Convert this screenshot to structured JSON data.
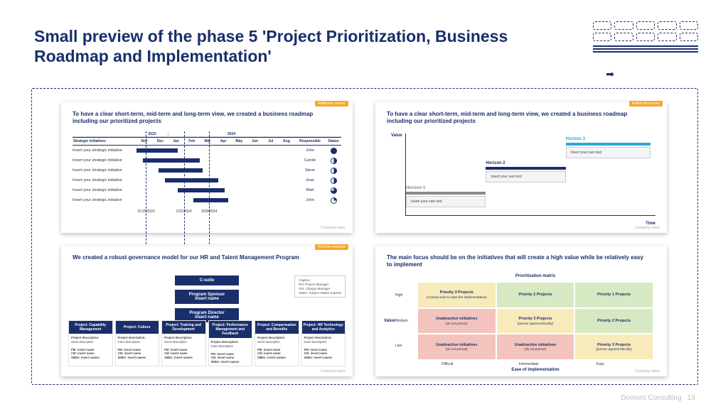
{
  "slide": {
    "title": "Small preview of the phase 5 'Project Prioritization, Business Roadmap and Implementation'",
    "footer_company": "Domont Consulting",
    "footer_page": "13",
    "colors": {
      "navy": "#1a2e6b",
      "orange": "#f5a623",
      "cyan": "#2aa8e0"
    }
  },
  "tags": {
    "additional": "Additional version",
    "reallife": "Real-life example"
  },
  "common": {
    "company_footnote": "Company name"
  },
  "gantt": {
    "title": "To have a clear short-term, mid-term and long-term view, we created a business roadmap including our prioritized projects",
    "col_initiatives": "Strategic initiatives",
    "year1": "2023",
    "year2": "2024",
    "months": [
      "Nov",
      "Dec",
      "Jan",
      "Feb",
      "Mar",
      "Apr",
      "May",
      "Jun",
      "Jul",
      "Aug"
    ],
    "col_responsible": "Responsible",
    "col_status": "Status",
    "rows": [
      {
        "label": "Insert your strategic initiative",
        "start_pct": 0,
        "width_pct": 26,
        "name": "John",
        "status_pct": 100
      },
      {
        "label": "Insert your strategic initiative",
        "start_pct": 4,
        "width_pct": 36,
        "name": "Carole",
        "status_pct": 50
      },
      {
        "label": "Insert your strategic initiative",
        "start_pct": 14,
        "width_pct": 28,
        "name": "Steve",
        "status_pct": 50
      },
      {
        "label": "Insert your strategic initiative",
        "start_pct": 18,
        "width_pct": 34,
        "name": "Jean",
        "status_pct": 50
      },
      {
        "label": "Insert your strategic initiative",
        "start_pct": 26,
        "width_pct": 30,
        "name": "Matt",
        "status_pct": 75
      },
      {
        "label": "Insert your strategic initiative",
        "start_pct": 36,
        "width_pct": 22,
        "name": "John",
        "status_pct": 25
      }
    ],
    "milestones": [
      {
        "pos_pct": 6,
        "label": "11/15/2023"
      },
      {
        "pos_pct": 30,
        "label": "1/22/2024"
      },
      {
        "pos_pct": 46,
        "label": "3/18/2024"
      }
    ]
  },
  "horizons": {
    "title": "To have a clear short-term, mid-term and long-term view, we created a business roadmap including our prioritized projects",
    "ylabel": "Value",
    "xlabel": "Time",
    "steps": [
      {
        "name": "Horizon 1",
        "text": "Insert your own text",
        "color": "#8a8a8a",
        "left_pct": 0,
        "width_pct": 32,
        "top_pct": 64
      },
      {
        "name": "Horizon 2",
        "text": "Insert your own text",
        "color": "#1a2e6b",
        "left_pct": 32,
        "width_pct": 32,
        "top_pct": 34
      },
      {
        "name": "Horizon 3",
        "text": "Insert your own text",
        "color": "#2aa8e0",
        "left_pct": 64,
        "width_pct": 34,
        "top_pct": 4
      }
    ]
  },
  "governance": {
    "title": "We created a robust governance model for our HR and Talent Management Program",
    "top_boxes": [
      "C-suite",
      "Program Sponsor\nInsert name",
      "Program Director\nInsert name"
    ],
    "legend_lines": [
      "Caption:",
      "PM: Project Manager",
      "CM: Change Manager",
      "SMEs: Subject Matter Experts"
    ],
    "columns": [
      "Project: Capability Management",
      "Project: Culture",
      "Project: Training and Development",
      "Project: Performance Management and Feedback",
      "Project: Compensation and Benefits",
      "Project: HR Technology and Analytics"
    ],
    "col_body_label1": "Project description:",
    "col_body_text": "insert description",
    "col_body_pm": "PM: insert name",
    "col_body_cm": "CM: insert name",
    "col_body_smes": "SMEs: insert names"
  },
  "matrix": {
    "title": "The main focus should be on the initiatives that will create a high value while be relatively easy to implement",
    "subtitle": "Prioritization matrix",
    "ylabel": "Value",
    "xlabel": "Ease of implementation",
    "yticks": [
      "High",
      "Medium",
      "Low"
    ],
    "xticks": [
      "Difficult",
      "Intermediate",
      "Easy"
    ],
    "colors": {
      "green": "#d7e9c3",
      "yellow": "#f7eabb",
      "red": "#f3c4bd"
    },
    "cells": [
      {
        "color": "yellow",
        "head": "Priority 3 Projects",
        "sub": "(Actively work to ease the implementation)"
      },
      {
        "color": "green",
        "head": "Priority 2 Projects",
        "sub": ""
      },
      {
        "color": "green",
        "head": "Priority 1 Projects",
        "sub": ""
      },
      {
        "color": "red",
        "head": "Unattractive initiatives",
        "sub": "(do not pursue)"
      },
      {
        "color": "yellow",
        "head": "Priority 3 Projects",
        "sub": "(pursue opportunistically)"
      },
      {
        "color": "green",
        "head": "Priority 2 Projects",
        "sub": ""
      },
      {
        "color": "red",
        "head": "Unattractive initiatives",
        "sub": "(do not pursue)"
      },
      {
        "color": "red",
        "head": "Unattractive initiatives",
        "sub": "(do not pursue)"
      },
      {
        "color": "yellow",
        "head": "Priority 3 Projects",
        "sub": "(pursue opportunistically)"
      }
    ]
  }
}
